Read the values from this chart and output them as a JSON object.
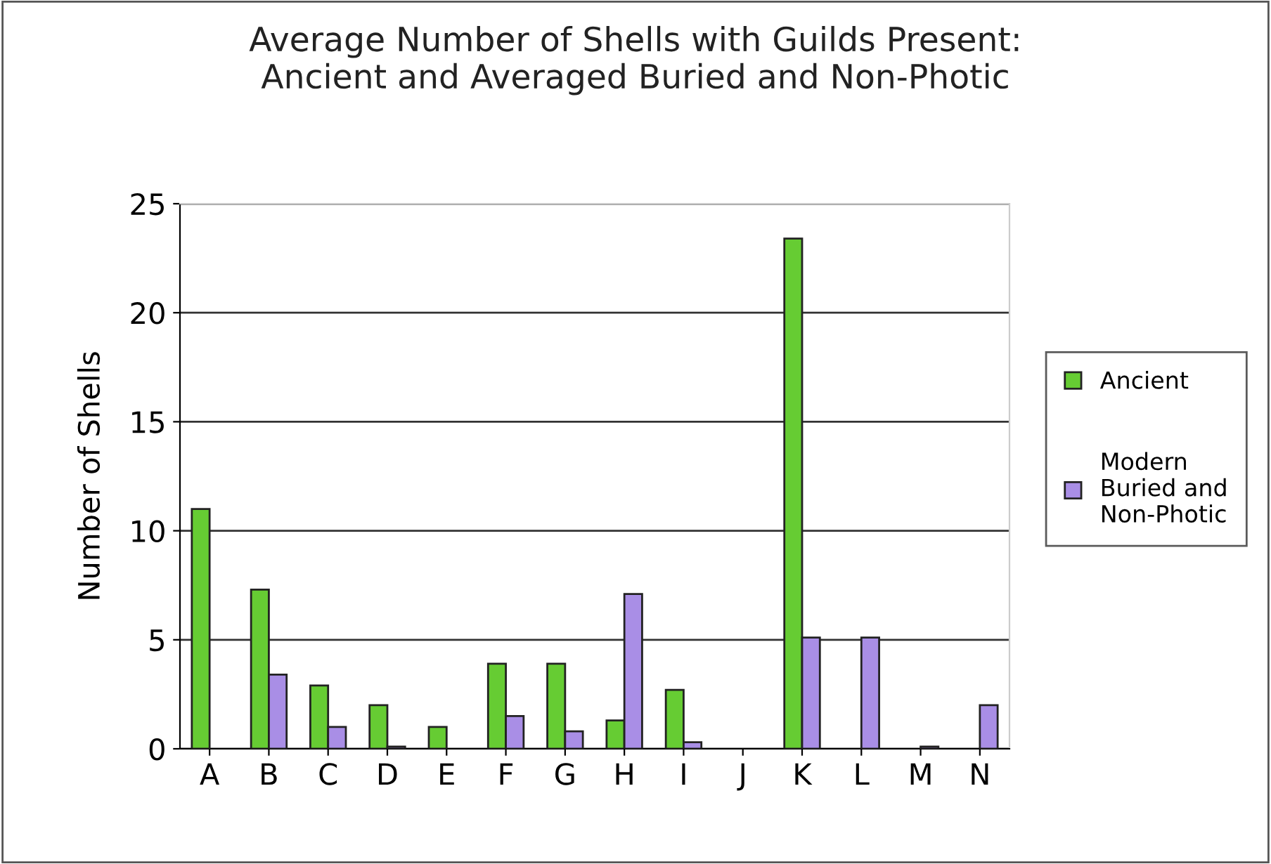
{
  "chart_data": {
    "type": "bar",
    "title": "Average Number of Shells with Guilds Present:\nAncient and Averaged Buried and Non-Photic",
    "ylabel": "Number of Shells",
    "categories": [
      "A",
      "B",
      "C",
      "D",
      "E",
      "F",
      "G",
      "H",
      "I",
      "J",
      "K",
      "L",
      "M",
      "N"
    ],
    "series": [
      {
        "name": "Ancient",
        "color": "#66cc33",
        "values": [
          11,
          7.3,
          2.9,
          2.0,
          1.0,
          3.9,
          3.9,
          1.3,
          2.7,
          null,
          23.4,
          null,
          null,
          null
        ]
      },
      {
        "name": "Modern\nBuried and\nNon-Photic",
        "color": "#a98ee6",
        "values": [
          null,
          3.4,
          1.0,
          0.1,
          null,
          1.5,
          0.8,
          7.1,
          0.3,
          null,
          5.1,
          5.1,
          0.1,
          2.0
        ]
      }
    ],
    "ylim": [
      0,
      25
    ],
    "yticks": [
      0,
      5,
      10,
      15,
      20,
      25
    ],
    "grid": "y",
    "legend": "right"
  }
}
